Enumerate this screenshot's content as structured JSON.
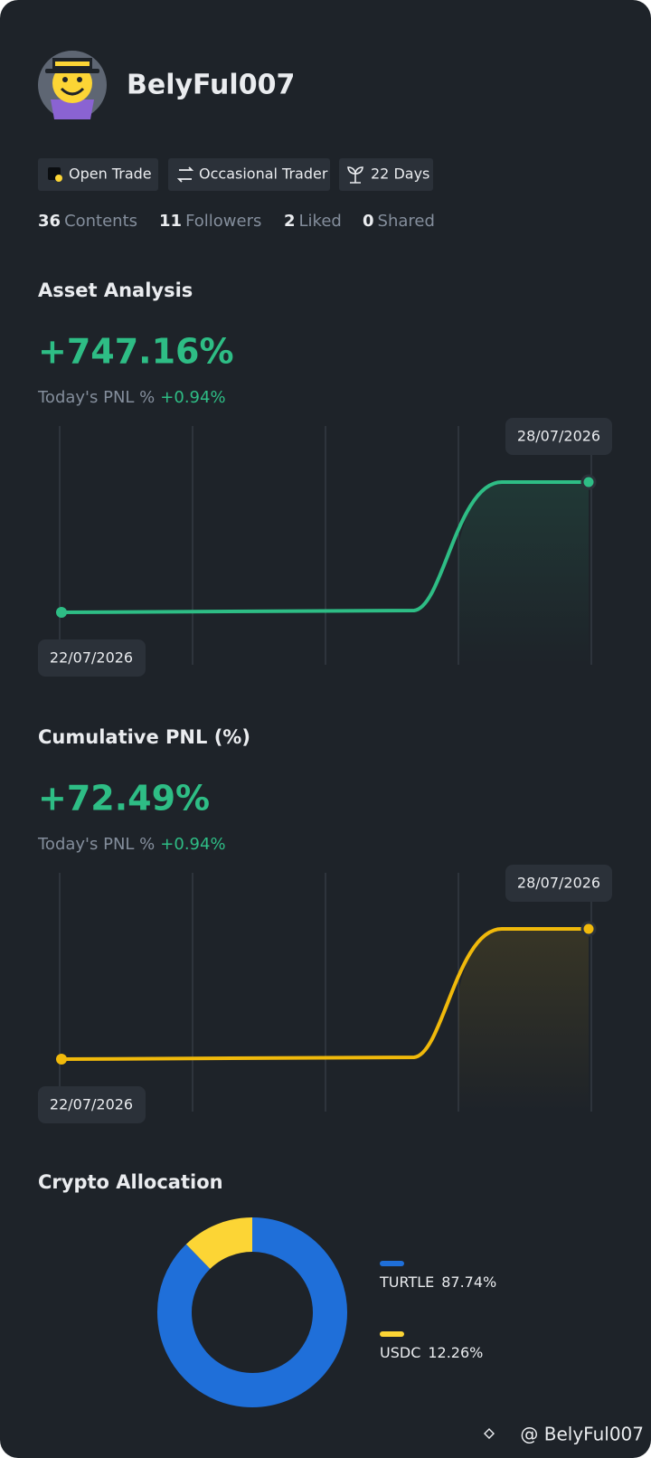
{
  "profile": {
    "name": "BelyFul007",
    "badges": [
      "Open Trade",
      "Occasional Trader",
      "22 Days"
    ],
    "stats": [
      {
        "value": 36,
        "label": "Contents"
      },
      {
        "value": 11,
        "label": "Followers"
      },
      {
        "value": 2,
        "label": "Liked"
      },
      {
        "value": 0,
        "label": "Shared"
      }
    ]
  },
  "asset_analysis": {
    "title": "Asset Analysis",
    "value": "+747.16%",
    "today_label": "Today's PNL %",
    "today_value": "+0.94%",
    "start_date": "22/07/2026",
    "end_date": "28/07/2026"
  },
  "cumulative_pnl": {
    "title": "Cumulative PNL (%)",
    "value": "+72.49%",
    "today_label": "Today's PNL %",
    "today_value": "+0.94%",
    "start_date": "22/07/2026",
    "end_date": "28/07/2026"
  },
  "chart_data": {
    "type": "pie",
    "title": "Crypto Allocation",
    "categories": [
      "TURTLE",
      "USDC"
    ],
    "values": [
      87.74,
      12.26
    ],
    "value_labels": [
      "87.74%",
      "12.26%"
    ],
    "colors": [
      "#1f6fd9",
      "#fcd535"
    ]
  },
  "watermark": "@ BelyFul007"
}
